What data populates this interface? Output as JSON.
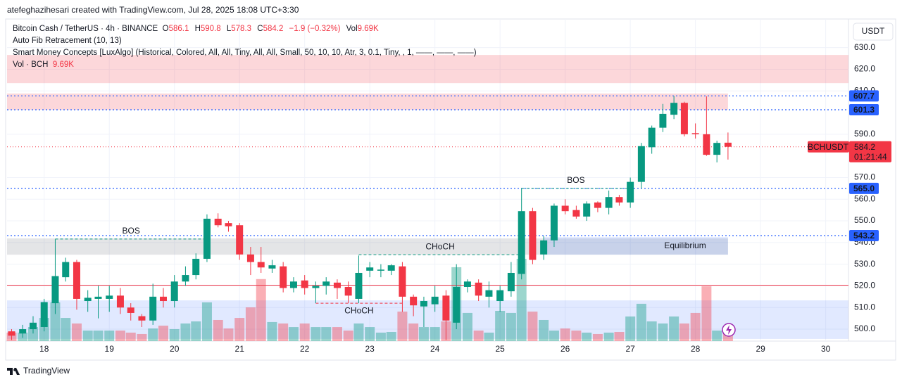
{
  "header": {
    "caption": "atefeghazihesari created with TradingView.com, Jul 28, 2025 18:08 UTC+3:30"
  },
  "legend": {
    "symbol": "Bitcoin Cash / TetherUS · 4h · BINANCE",
    "ohlc_labels": [
      "O",
      "H",
      "L",
      "C"
    ],
    "change": "−1.9 (−0.32%)",
    "vol_label": "Vol",
    "vol_value": "9.69K",
    "indicators": [
      "Auto Fib Retracement (10, 13)",
      "Smart Money Concepts [LuxAlgo] (Historical, Colored, All, All, Tiny, All, All, Small, 50, 10, 10, Atr, 3, 0.1, Tiny, , 1, ——, ——, ——)"
    ],
    "volume_name": "Vol · BCH",
    "volume_value": "9.69K"
  },
  "footer": {
    "brand": "TradingView"
  },
  "chart_data": {
    "type": "candlestick",
    "currency": "USDT",
    "symbol_badge": "BCHUSDT",
    "countdown": "01:21:44",
    "up_color": "#089981",
    "down_color": "#f23645",
    "grid": true,
    "x": [
      17.5,
      17.67,
      17.83,
      18,
      18.17,
      18.33,
      18.5,
      18.67,
      18.83,
      19,
      19.17,
      19.33,
      19.5,
      19.67,
      19.83,
      20,
      20.17,
      20.33,
      20.5,
      20.67,
      20.83,
      21,
      21.17,
      21.33,
      21.5,
      21.67,
      21.83,
      22,
      22.17,
      22.33,
      22.5,
      22.67,
      22.83,
      23,
      23.17,
      23.33,
      23.5,
      23.67,
      23.83,
      24,
      24.17,
      24.33,
      24.5,
      24.67,
      24.83,
      25,
      25.17,
      25.33,
      25.5,
      25.67,
      25.83,
      26,
      26.17,
      26.33,
      26.5,
      26.67,
      26.83,
      27,
      27.17,
      27.33,
      27.5,
      27.67,
      27.83,
      28,
      28.17,
      28.33,
      28.5
    ],
    "open": [
      499,
      498,
      500,
      501,
      512,
      524,
      531,
      513,
      514,
      514,
      515.5,
      510,
      506,
      504,
      515,
      513,
      522,
      525,
      532.5,
      551,
      549,
      548,
      534.5,
      531,
      528,
      529,
      519,
      522.5,
      519,
      520,
      521.5,
      519.5,
      514,
      527,
      527,
      527,
      529,
      515,
      510.5,
      511.5,
      515.5,
      503,
      519.5,
      521.5,
      515,
      513,
      517.5,
      525.5,
      554.5,
      534.5,
      541,
      557,
      555,
      552,
      558.5,
      556,
      561,
      558.5,
      568,
      584,
      593,
      599,
      604.5,
      590.5,
      590,
      580.5,
      586.1
    ],
    "high": [
      500,
      502,
      506,
      514,
      541.5,
      533,
      532,
      518,
      520,
      520,
      519,
      512,
      507,
      521,
      519,
      525,
      529,
      535,
      553,
      553.5,
      550,
      549,
      538,
      538,
      532,
      531,
      524,
      525,
      522,
      524,
      523,
      522,
      534,
      531,
      530,
      530,
      531,
      516,
      515,
      520,
      518,
      530,
      523,
      523,
      522,
      520,
      531,
      565,
      556,
      543,
      558,
      560,
      557,
      559,
      559,
      564,
      562,
      570,
      586,
      594,
      604,
      607.7,
      605,
      595,
      607.5,
      587,
      590.8
    ],
    "low": [
      495,
      496,
      498,
      499,
      507,
      522,
      509,
      508,
      505,
      508,
      507,
      504,
      501,
      502,
      510,
      510,
      520,
      523,
      531,
      547,
      545,
      532,
      525,
      526,
      526,
      517,
      517,
      516,
      512,
      516,
      514,
      512,
      512,
      524,
      524,
      525,
      508,
      506,
      501,
      508,
      495,
      500,
      517,
      513,
      510,
      508,
      515,
      523,
      530,
      532,
      538,
      553,
      551,
      550,
      554,
      553,
      557,
      556,
      565,
      581,
      591,
      597,
      589,
      588,
      580,
      577,
      578.3
    ],
    "close": [
      497,
      500,
      503,
      512.5,
      524.5,
      531,
      514,
      514.5,
      515,
      515.5,
      510,
      507.5,
      504,
      515,
      513,
      522,
      525,
      532.5,
      551,
      548,
      547.5,
      534.5,
      531,
      528.5,
      529.5,
      519,
      522,
      519,
      520,
      522,
      519,
      515.5,
      526,
      528.5,
      527.5,
      529.5,
      515,
      511,
      513,
      515,
      504,
      519.5,
      522,
      515.5,
      518,
      518,
      526,
      554.5,
      532,
      541,
      557,
      554.5,
      552,
      558,
      556,
      561,
      558.5,
      568,
      584.5,
      593,
      599.4,
      604.5,
      590,
      590,
      580.5,
      586,
      584.2
    ],
    "volume": [
      7.8,
      7.8,
      12.9,
      21.3,
      35.6,
      21.3,
      16.2,
      9.7,
      9.7,
      9.7,
      9.7,
      7.8,
      6.5,
      11.6,
      14.2,
      11,
      16.2,
      18.1,
      35.6,
      19.4,
      11.6,
      21.3,
      31,
      57,
      17.5,
      16.2,
      12.9,
      16.2,
      12.9,
      12.9,
      12.9,
      9.7,
      16.2,
      12.9,
      7.8,
      8.4,
      27.1,
      16.2,
      12.9,
      12.9,
      18.1,
      67.9,
      25.9,
      9.7,
      7.8,
      27.8,
      25.9,
      75.6,
      27.1,
      19.4,
      9.7,
      11.6,
      9.7,
      7.8,
      6.5,
      7.8,
      8.4,
      22.6,
      34.3,
      18.1,
      16.2,
      22.6,
      16.2,
      25.9,
      50.4,
      9.7,
      9.69
    ],
    "vlim": [
      0,
      296
    ],
    "xlim": [
      17.43,
      30.35
    ],
    "xticks": [
      18,
      19,
      20,
      21,
      22,
      23,
      24,
      25,
      26,
      27,
      28,
      29,
      30
    ],
    "ylim": [
      494.5,
      643.2
    ],
    "yticks": [
      {
        "value": 630,
        "label": "630.0"
      },
      {
        "value": 620,
        "label": "620.0"
      },
      {
        "value": 610,
        "label": "610.0"
      },
      {
        "value": 590,
        "label": "590.0"
      },
      {
        "value": 570,
        "label": "570.0"
      },
      {
        "value": 560,
        "label": "560.0"
      },
      {
        "value": 550,
        "label": "550.0"
      },
      {
        "value": 540,
        "label": "540.0"
      },
      {
        "value": 530,
        "label": "530.0"
      },
      {
        "value": 520,
        "label": "520.0"
      },
      {
        "value": 510,
        "label": "510.0"
      },
      {
        "value": 500,
        "label": "500.0"
      }
    ],
    "levels": [
      {
        "value": 607.7,
        "label": "607.7"
      },
      {
        "value": 601.3,
        "label": "601.3"
      },
      {
        "value": 565,
        "label": "565.0"
      },
      {
        "value": 543.2,
        "label": "543.2"
      }
    ],
    "level_color": "#2962ff",
    "hline": {
      "value": 520.3,
      "color": "#f23645"
    },
    "zones": [
      {
        "low": 613.6,
        "high": 626.6,
        "x0": 17.43,
        "x1": 30.35,
        "color": "rgba(242,54,69,0.2)"
      },
      {
        "low": 601.3,
        "high": 608.8,
        "x0": 17.43,
        "x1": 28.5,
        "color": "rgba(242,54,69,0.2)"
      },
      {
        "low": 534.4,
        "high": 541.9,
        "x0": 17.43,
        "x1": 28.5,
        "color": "rgba(120,123,134,0.2)"
      },
      {
        "low": 534.4,
        "high": 542.5,
        "x0": 25.67,
        "x1": 28.5,
        "color": "rgba(41,98,255,0.15)",
        "label": "Equilibrium"
      },
      {
        "low": 495.5,
        "high": 513.3,
        "x0": 17.43,
        "x1": 30.35,
        "color": "rgba(41,98,255,0.14)"
      }
    ],
    "annotations": [
      {
        "text": "BOS",
        "price": 541.6,
        "x0": 18.17,
        "x1": 20.5,
        "color": "#089981"
      },
      {
        "text": "CHoCH",
        "price": 534.4,
        "x0": 22.83,
        "x1": 25.33,
        "color": "#089981"
      },
      {
        "text": "BOS",
        "price": 565,
        "x0": 25.33,
        "x1": 27,
        "color": "#089981"
      },
      {
        "text": "CHoCH",
        "price": 512,
        "x0": 22.17,
        "x1": 23.5,
        "color": "#f23645"
      }
    ]
  }
}
